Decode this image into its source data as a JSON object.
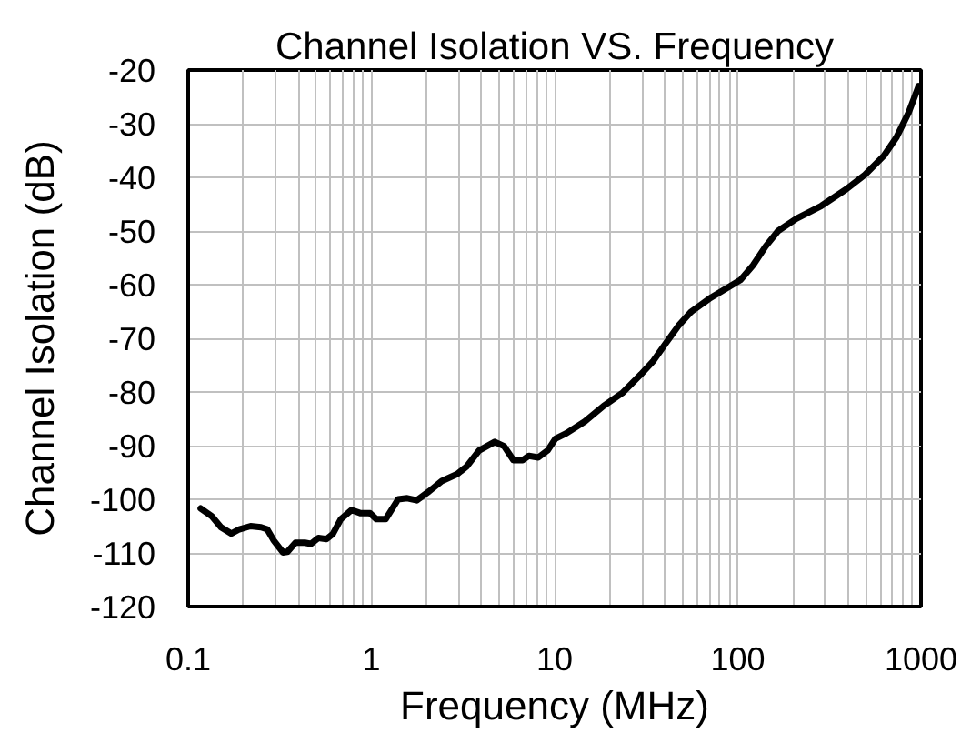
{
  "chart_data": {
    "type": "line",
    "title": "Channel Isolation VS. Frequency",
    "xlabel": "Frequency (MHz)",
    "ylabel": "Channel Isolation (dB)",
    "log": "x",
    "grid": true,
    "line_style": "solid",
    "xlim": [
      0.1,
      1000
    ],
    "xticks": [
      0.1,
      1,
      10,
      100,
      1000
    ],
    "ylim": [
      -120,
      -20
    ],
    "yticks": [
      -120,
      -110,
      -100,
      -90,
      -80,
      -70,
      -60,
      -50,
      -40,
      -30,
      -20
    ],
    "series": [
      {
        "color": "#000000",
        "x": [
          0.117,
          0.134,
          0.151,
          0.172,
          0.19,
          0.219,
          0.25,
          0.27,
          0.292,
          0.329,
          0.348,
          0.385,
          0.433,
          0.468,
          0.514,
          0.569,
          0.615,
          0.681,
          0.778,
          0.875,
          0.984,
          1.065,
          1.197,
          1.4,
          1.57,
          1.77,
          2.07,
          2.42,
          2.94,
          3.31,
          3.87,
          4.71,
          5.3,
          5.96,
          6.7,
          7.24,
          8.14,
          9.16,
          10.1,
          11.6,
          14.6,
          18.5,
          23.4,
          29.6,
          34.6,
          40.5,
          47.3,
          55.4,
          70,
          88.5,
          103.5,
          121,
          141.6,
          165.7,
          209,
          286,
          391,
          495,
          626,
          733,
          857,
          971
        ],
        "values": [
          -101.7,
          -103.1,
          -105.2,
          -106.4,
          -105.6,
          -105.0,
          -105.2,
          -105.6,
          -107.6,
          -109.9,
          -109.8,
          -108.1,
          -108.1,
          -108.3,
          -107.2,
          -107.4,
          -106.5,
          -103.7,
          -102.0,
          -102.6,
          -102.6,
          -103.7,
          -103.7,
          -100.0,
          -99.8,
          -100.2,
          -98.5,
          -96.6,
          -95.3,
          -93.9,
          -90.9,
          -89.3,
          -90.1,
          -92.7,
          -92.7,
          -91.9,
          -92.2,
          -90.9,
          -88.7,
          -87.7,
          -85.5,
          -82.6,
          -80.2,
          -76.7,
          -74.2,
          -70.9,
          -67.7,
          -65.1,
          -62.6,
          -60.5,
          -59.1,
          -56.4,
          -52.9,
          -50.0,
          -47.7,
          -45.3,
          -42.2,
          -39.5,
          -36.0,
          -32.6,
          -27.9,
          -23.0
        ]
      }
    ]
  }
}
